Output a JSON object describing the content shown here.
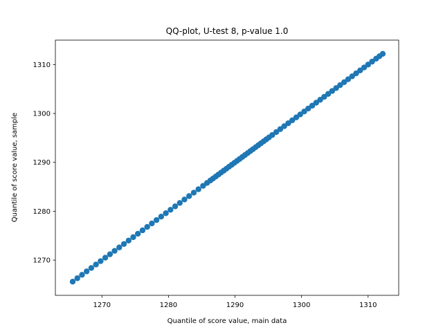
{
  "chart_data": {
    "type": "scatter",
    "title": "QQ-plot, U-test 8, p-value 1.0",
    "xlabel": "Quantile of score value, main data",
    "ylabel": "Quantile of score value, sample",
    "xlim": [
      1263.0,
      1314.6
    ],
    "ylim": [
      1262.8,
      1315.0
    ],
    "x_ticks": [
      1270,
      1280,
      1290,
      1300,
      1310
    ],
    "y_ticks": [
      1270,
      1280,
      1290,
      1300,
      1310
    ],
    "x_tick_labels": [
      "1270",
      "1280",
      "1290",
      "1300",
      "1310"
    ],
    "y_tick_labels": [
      "1270",
      "1280",
      "1290",
      "1300",
      "1310"
    ],
    "grid": false,
    "legend": "none",
    "series": [
      {
        "color": "#1f77b4",
        "marker": "circle",
        "x": [
          1265.6,
          1266.3,
          1267.0,
          1267.7,
          1268.4,
          1269.1,
          1269.8,
          1270.5,
          1271.2,
          1271.9,
          1272.6,
          1273.3,
          1274.0,
          1274.7,
          1275.4,
          1276.1,
          1276.8,
          1277.5,
          1278.2,
          1278.9,
          1279.6,
          1280.3,
          1281.0,
          1281.7,
          1282.4,
          1283.1,
          1283.8,
          1284.5,
          1285.2,
          1285.8,
          1286.3,
          1286.7,
          1287.1,
          1287.5,
          1287.9,
          1288.3,
          1288.7,
          1289.1,
          1289.5,
          1289.9,
          1290.3,
          1290.7,
          1291.1,
          1291.5,
          1291.9,
          1292.3,
          1292.7,
          1293.1,
          1293.5,
          1293.9,
          1294.3,
          1294.7,
          1295.1,
          1295.6,
          1296.2,
          1296.8,
          1297.4,
          1298.0,
          1298.6,
          1299.2,
          1299.8,
          1300.4,
          1301.0,
          1301.6,
          1302.2,
          1302.8,
          1303.4,
          1304.0,
          1304.6,
          1305.2,
          1305.8,
          1306.4,
          1307.0,
          1307.6,
          1308.2,
          1308.8,
          1309.4,
          1310.0,
          1310.6,
          1311.2,
          1311.7,
          1312.2
        ],
        "y": [
          1265.6,
          1266.3,
          1267.0,
          1267.7,
          1268.4,
          1269.1,
          1269.8,
          1270.5,
          1271.2,
          1271.9,
          1272.6,
          1273.3,
          1274.0,
          1274.7,
          1275.4,
          1276.1,
          1276.8,
          1277.5,
          1278.2,
          1278.9,
          1279.6,
          1280.3,
          1281.0,
          1281.7,
          1282.4,
          1283.1,
          1283.8,
          1284.5,
          1285.2,
          1285.8,
          1286.3,
          1286.7,
          1287.1,
          1287.5,
          1287.9,
          1288.3,
          1288.7,
          1289.1,
          1289.5,
          1289.9,
          1290.3,
          1290.7,
          1291.1,
          1291.5,
          1291.9,
          1292.3,
          1292.7,
          1293.1,
          1293.5,
          1293.9,
          1294.3,
          1294.7,
          1295.1,
          1295.6,
          1296.2,
          1296.8,
          1297.4,
          1298.0,
          1298.6,
          1299.2,
          1299.8,
          1300.4,
          1301.0,
          1301.6,
          1302.2,
          1302.8,
          1303.4,
          1304.0,
          1304.6,
          1305.2,
          1305.8,
          1306.4,
          1307.0,
          1307.6,
          1308.2,
          1308.8,
          1309.4,
          1310.0,
          1310.6,
          1311.2,
          1311.7,
          1312.2
        ]
      }
    ]
  }
}
